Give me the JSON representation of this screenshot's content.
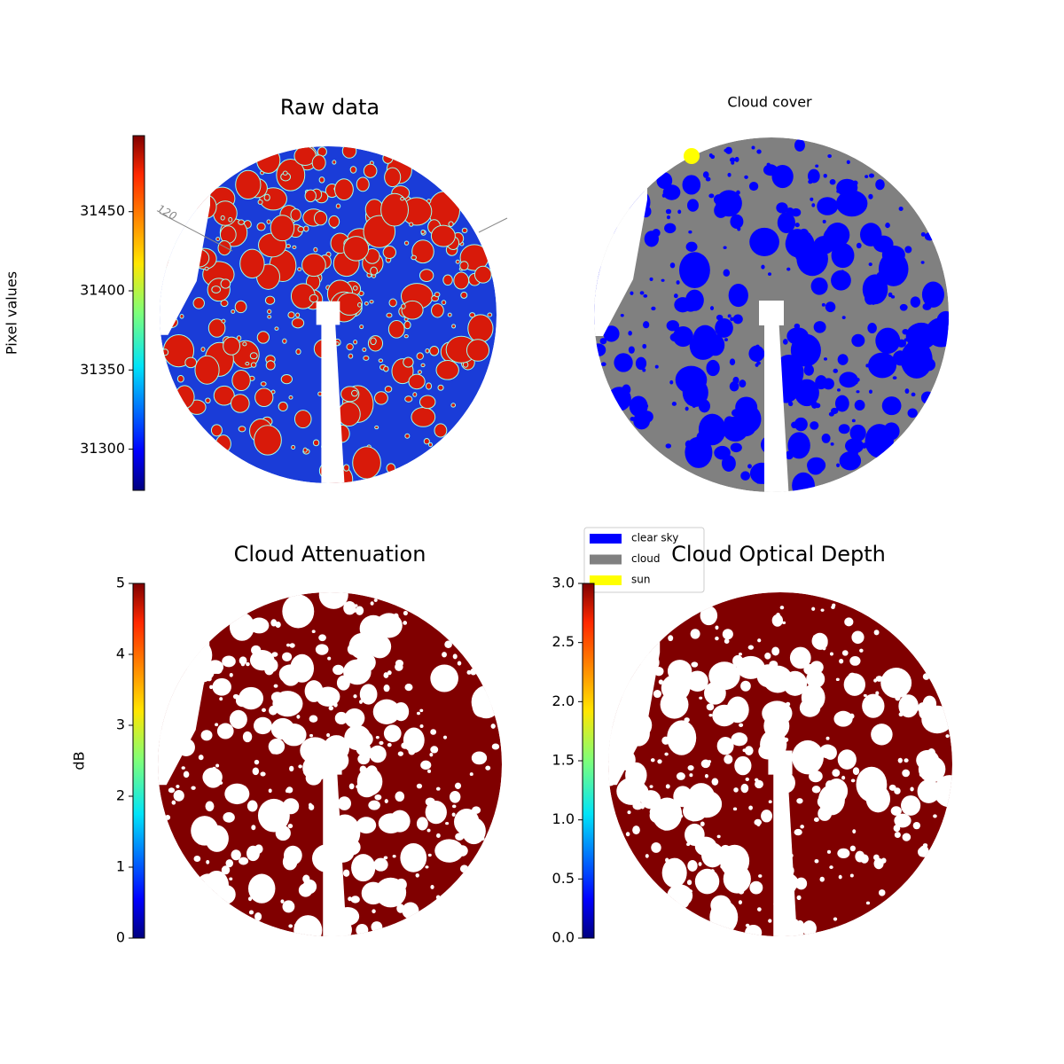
{
  "chart_data": [
    {
      "type": "image",
      "title": "Raw data",
      "ylabel": "Pixel values",
      "colormap": "jet",
      "ylim": [
        31274,
        31498
      ],
      "yticks": [
        31300,
        31350,
        31400,
        31450
      ],
      "annotations": [
        "120"
      ]
    },
    {
      "type": "image",
      "title": "Cloud cover",
      "legend": [
        {
          "name": "clear sky",
          "color": "#0000ff"
        },
        {
          "name": "cloud",
          "color": "#808080"
        },
        {
          "name": "sun",
          "color": "#ffff00"
        }
      ]
    },
    {
      "type": "image",
      "title": "Cloud Attenuation",
      "ylabel": "dB",
      "colormap": "jet",
      "ylim": [
        0,
        5
      ],
      "yticks": [
        0,
        1,
        2,
        3,
        4,
        5
      ]
    },
    {
      "type": "image",
      "title": "Cloud Optical Depth",
      "colormap": "jet",
      "ylim": [
        0,
        3
      ],
      "yticks": [
        {
          "value": 0,
          "label": "0.0"
        },
        {
          "value": 0.5,
          "label": "0.5"
        },
        {
          "value": 1,
          "label": "1.0"
        },
        {
          "value": 1.5,
          "label": "1.5"
        },
        {
          "value": 2,
          "label": "2.0"
        },
        {
          "value": 2.5,
          "label": "2.5"
        },
        {
          "value": 3,
          "label": "3.0"
        }
      ]
    }
  ]
}
